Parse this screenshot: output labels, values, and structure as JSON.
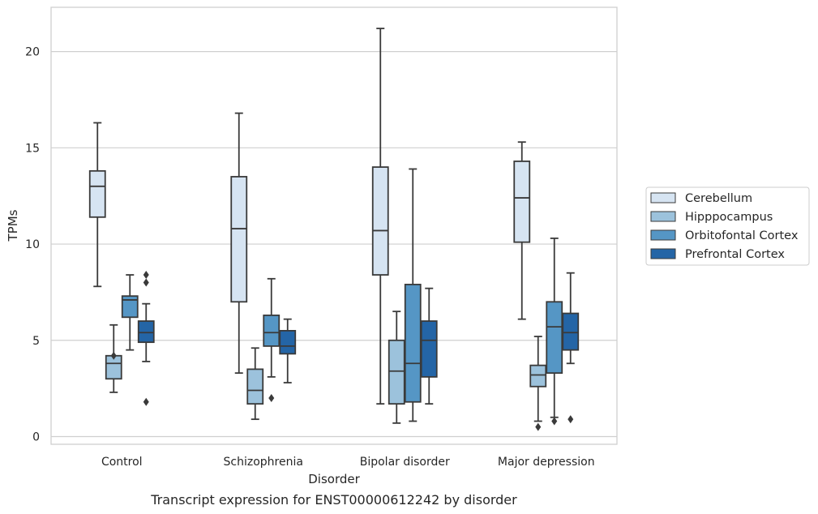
{
  "chart_data": {
    "type": "boxplot",
    "caption": "Transcript expression for ENST00000612242 by disorder",
    "xlabel": "Disorder",
    "ylabel": "TPMs",
    "ylim": [
      -0.4,
      22.3
    ],
    "yticks": [
      0,
      5,
      10,
      15,
      20
    ],
    "grid": true,
    "legend_position": "right",
    "categories": [
      "Control",
      "Schizophrenia",
      "Bipolar disorder",
      "Major depression"
    ],
    "series": [
      {
        "name": "Cerebellum",
        "color": "#d6e4f2",
        "boxes": [
          {
            "whisker_low": 7.8,
            "q1": 11.4,
            "median": 13.0,
            "q3": 13.8,
            "whisker_high": 16.3,
            "outliers": []
          },
          {
            "whisker_low": 3.3,
            "q1": 7.0,
            "median": 10.8,
            "q3": 13.5,
            "whisker_high": 16.8,
            "outliers": []
          },
          {
            "whisker_low": 1.7,
            "q1": 8.4,
            "median": 10.7,
            "q3": 14.0,
            "whisker_high": 21.2,
            "outliers": []
          },
          {
            "whisker_low": 6.1,
            "q1": 10.1,
            "median": 12.4,
            "q3": 14.3,
            "whisker_high": 15.3,
            "outliers": []
          }
        ]
      },
      {
        "name": "Hipppocampus",
        "color": "#9cc2dc",
        "boxes": [
          {
            "whisker_low": 2.3,
            "q1": 3.0,
            "median": 3.8,
            "q3": 4.2,
            "whisker_high": 5.8,
            "outliers": [
              4.2
            ]
          },
          {
            "whisker_low": 0.9,
            "q1": 1.7,
            "median": 2.4,
            "q3": 3.5,
            "whisker_high": 4.6,
            "outliers": []
          },
          {
            "whisker_low": 0.7,
            "q1": 1.7,
            "median": 3.4,
            "q3": 5.0,
            "whisker_high": 6.5,
            "outliers": []
          },
          {
            "whisker_low": 0.8,
            "q1": 2.6,
            "median": 3.2,
            "q3": 3.7,
            "whisker_high": 5.2,
            "outliers": [
              0.5
            ]
          }
        ]
      },
      {
        "name": "Orbitofontal Cortex",
        "color": "#5596c5",
        "boxes": [
          {
            "whisker_low": 4.5,
            "q1": 6.2,
            "median": 7.1,
            "q3": 7.3,
            "whisker_high": 8.4,
            "outliers": []
          },
          {
            "whisker_low": 3.1,
            "q1": 4.7,
            "median": 5.4,
            "q3": 6.3,
            "whisker_high": 8.2,
            "outliers": [
              2.0
            ]
          },
          {
            "whisker_low": 0.8,
            "q1": 1.8,
            "median": 3.8,
            "q3": 7.9,
            "whisker_high": 13.9,
            "outliers": []
          },
          {
            "whisker_low": 1.0,
            "q1": 3.3,
            "median": 5.7,
            "q3": 7.0,
            "whisker_high": 10.3,
            "outliers": [
              0.8
            ]
          }
        ]
      },
      {
        "name": "Prefrontal Cortex",
        "color": "#2465a6",
        "boxes": [
          {
            "whisker_low": 3.9,
            "q1": 4.9,
            "median": 5.4,
            "q3": 6.0,
            "whisker_high": 6.9,
            "outliers": [
              8.4,
              8.0,
              1.8
            ]
          },
          {
            "whisker_low": 2.8,
            "q1": 4.3,
            "median": 4.7,
            "q3": 5.5,
            "whisker_high": 6.1,
            "outliers": []
          },
          {
            "whisker_low": 1.7,
            "q1": 3.1,
            "median": 5.0,
            "q3": 6.0,
            "whisker_high": 7.7,
            "outliers": []
          },
          {
            "whisker_low": 3.8,
            "q1": 4.5,
            "median": 5.4,
            "q3": 6.4,
            "whisker_high": 8.5,
            "outliers": [
              0.9
            ]
          }
        ]
      }
    ]
  }
}
